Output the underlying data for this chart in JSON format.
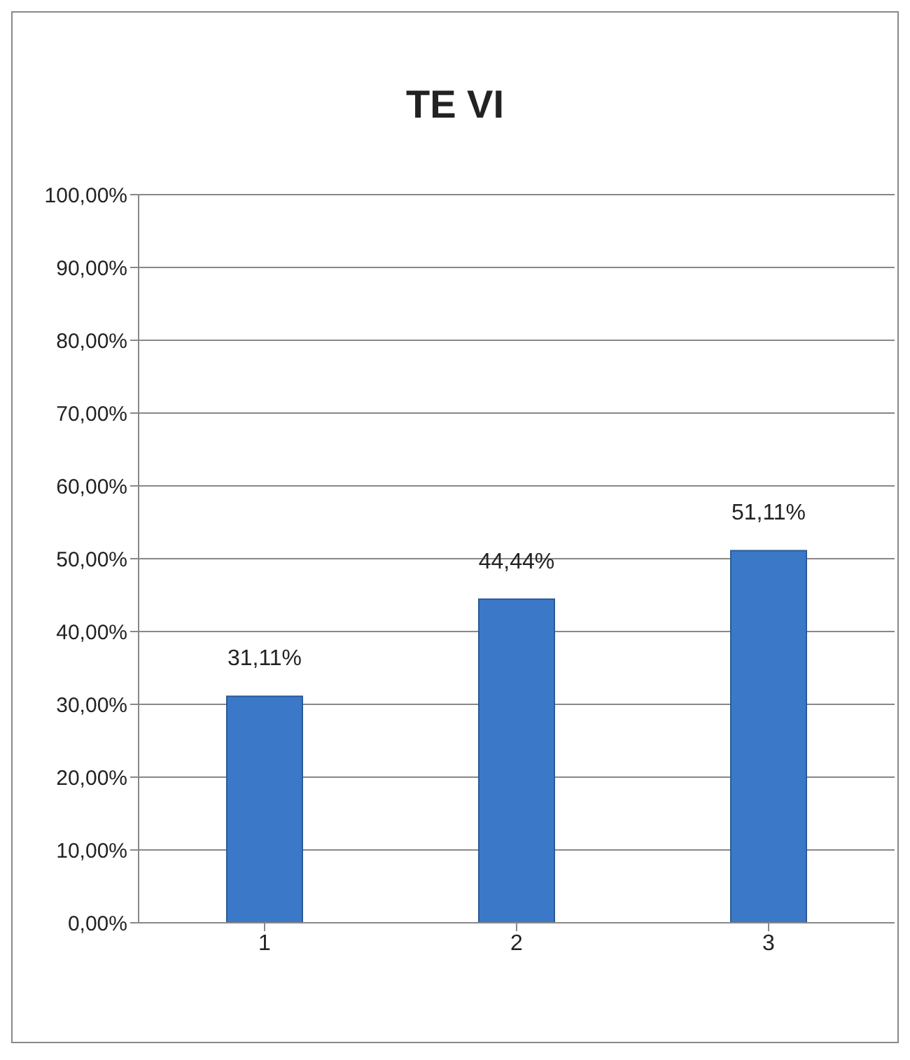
{
  "chart_data": {
    "type": "bar",
    "title": "TE VI",
    "categories": [
      "1",
      "2",
      "3"
    ],
    "values": [
      31.11,
      44.44,
      51.11
    ],
    "value_labels": [
      "31,11%",
      "44,44%",
      "51,11%"
    ],
    "color": "#3b78c8",
    "ylim": [
      0,
      100
    ],
    "yticks": [
      {
        "value": 0,
        "label": "0,00%"
      },
      {
        "value": 10,
        "label": "10,00%"
      },
      {
        "value": 20,
        "label": "20,00%"
      },
      {
        "value": 30,
        "label": "30,00%"
      },
      {
        "value": 40,
        "label": "40,00%"
      },
      {
        "value": 50,
        "label": "50,00%"
      },
      {
        "value": 60,
        "label": "60,00%"
      },
      {
        "value": 70,
        "label": "70,00%"
      },
      {
        "value": 80,
        "label": "80,00%"
      },
      {
        "value": 90,
        "label": "90,00%"
      },
      {
        "value": 100,
        "label": "100,00%"
      }
    ],
    "grid": "y"
  }
}
